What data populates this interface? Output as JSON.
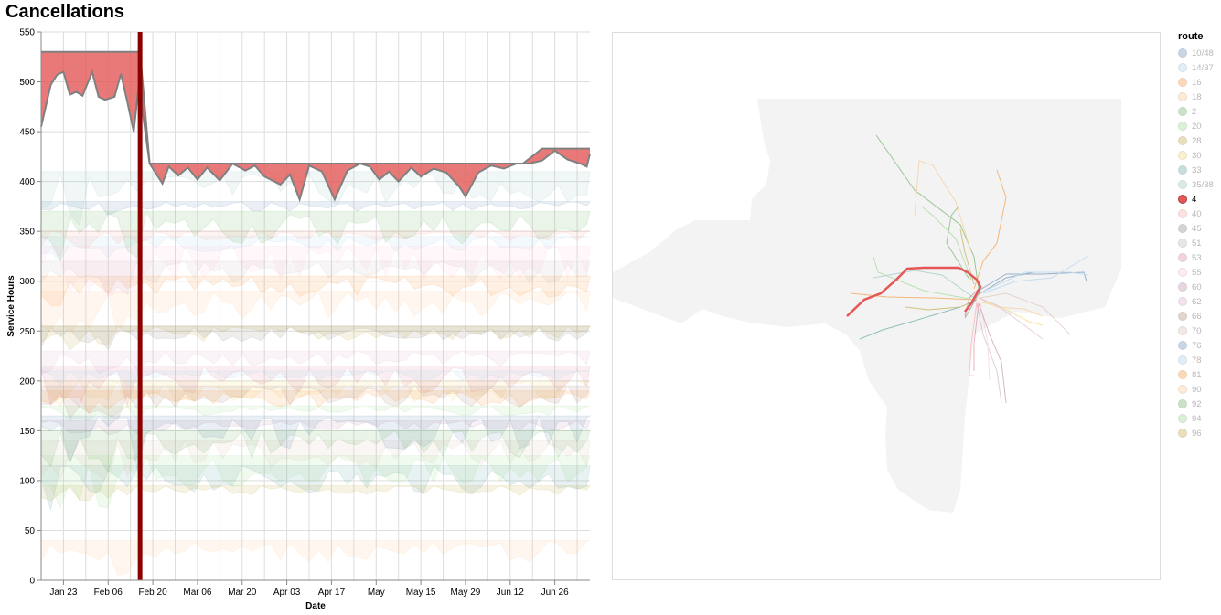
{
  "title": "Cancellations",
  "chart_data": {
    "type": "area",
    "xlabel": "Date",
    "ylabel": "Service Hours",
    "xlim": [
      "2023-01-16",
      "2023-07-07"
    ],
    "ylim": [
      0,
      550
    ],
    "y_ticks": [
      0,
      50,
      100,
      150,
      200,
      250,
      300,
      350,
      400,
      450,
      500,
      550
    ],
    "x_ticks": [
      {
        "date": "2023-01-23",
        "label": "Jan 23"
      },
      {
        "date": "2023-02-06",
        "label": "Feb 06"
      },
      {
        "date": "2023-02-20",
        "label": "Feb 20"
      },
      {
        "date": "2023-03-06",
        "label": "Mar 06"
      },
      {
        "date": "2023-03-20",
        "label": "Mar 20"
      },
      {
        "date": "2023-04-03",
        "label": "Apr 03"
      },
      {
        "date": "2023-04-17",
        "label": "Apr 17"
      },
      {
        "date": "2023-05-01",
        "label": "May"
      },
      {
        "date": "2023-05-15",
        "label": "May 15"
      },
      {
        "date": "2023-05-29",
        "label": "May 29"
      },
      {
        "date": "2023-06-12",
        "label": "Jun 12"
      },
      {
        "date": "2023-06-26",
        "label": "Jun 26"
      }
    ],
    "grid": true,
    "selected_date": "2023-02-16",
    "highlighted_series": {
      "name": "4",
      "color": "#e45756",
      "baseline": [
        {
          "x": "2023-01-16",
          "y": 530
        },
        {
          "x": "2023-02-16",
          "y": 530
        },
        {
          "x": "2023-02-19",
          "y": 418
        },
        {
          "x": "2023-06-16",
          "y": 418
        },
        {
          "x": "2023-06-22",
          "y": 433
        },
        {
          "x": "2023-07-07",
          "y": 433
        }
      ],
      "values": [
        {
          "x": "2023-01-16",
          "y": 455
        },
        {
          "x": "2023-01-19",
          "y": 497
        },
        {
          "x": "2023-01-21",
          "y": 507
        },
        {
          "x": "2023-01-23",
          "y": 510
        },
        {
          "x": "2023-01-25",
          "y": 487
        },
        {
          "x": "2023-01-27",
          "y": 490
        },
        {
          "x": "2023-01-29",
          "y": 486
        },
        {
          "x": "2023-02-01",
          "y": 510
        },
        {
          "x": "2023-02-03",
          "y": 485
        },
        {
          "x": "2023-02-05",
          "y": 482
        },
        {
          "x": "2023-02-08",
          "y": 485
        },
        {
          "x": "2023-02-10",
          "y": 508
        },
        {
          "x": "2023-02-12",
          "y": 480
        },
        {
          "x": "2023-02-14",
          "y": 450
        },
        {
          "x": "2023-02-16",
          "y": 508
        },
        {
          "x": "2023-02-17",
          "y": 465
        },
        {
          "x": "2023-02-19",
          "y": 418
        },
        {
          "x": "2023-02-23",
          "y": 398
        },
        {
          "x": "2023-02-25",
          "y": 415
        },
        {
          "x": "2023-02-28",
          "y": 406
        },
        {
          "x": "2023-03-03",
          "y": 414
        },
        {
          "x": "2023-03-06",
          "y": 402
        },
        {
          "x": "2023-03-09",
          "y": 414
        },
        {
          "x": "2023-03-13",
          "y": 401
        },
        {
          "x": "2023-03-17",
          "y": 418
        },
        {
          "x": "2023-03-21",
          "y": 411
        },
        {
          "x": "2023-03-24",
          "y": 416
        },
        {
          "x": "2023-03-27",
          "y": 405
        },
        {
          "x": "2023-04-01",
          "y": 397
        },
        {
          "x": "2023-04-04",
          "y": 407
        },
        {
          "x": "2023-04-07",
          "y": 382
        },
        {
          "x": "2023-04-10",
          "y": 416
        },
        {
          "x": "2023-04-14",
          "y": 410
        },
        {
          "x": "2023-04-18",
          "y": 382
        },
        {
          "x": "2023-04-22",
          "y": 411
        },
        {
          "x": "2023-04-26",
          "y": 418
        },
        {
          "x": "2023-04-29",
          "y": 415
        },
        {
          "x": "2023-05-02",
          "y": 402
        },
        {
          "x": "2023-05-05",
          "y": 410
        },
        {
          "x": "2023-05-08",
          "y": 400
        },
        {
          "x": "2023-05-12",
          "y": 414
        },
        {
          "x": "2023-05-15",
          "y": 405
        },
        {
          "x": "2023-05-19",
          "y": 413
        },
        {
          "x": "2023-05-23",
          "y": 409
        },
        {
          "x": "2023-05-27",
          "y": 395
        },
        {
          "x": "2023-05-29",
          "y": 385
        },
        {
          "x": "2023-06-02",
          "y": 409
        },
        {
          "x": "2023-06-06",
          "y": 416
        },
        {
          "x": "2023-06-10",
          "y": 413
        },
        {
          "x": "2023-06-14",
          "y": 418
        },
        {
          "x": "2023-06-18",
          "y": 418
        },
        {
          "x": "2023-06-22",
          "y": 421
        },
        {
          "x": "2023-06-26",
          "y": 431
        },
        {
          "x": "2023-06-30",
          "y": 422
        },
        {
          "x": "2023-07-04",
          "y": 418
        },
        {
          "x": "2023-07-06",
          "y": 415
        },
        {
          "x": "2023-07-07",
          "y": 428
        }
      ]
    },
    "background_series": [
      {
        "name": "10/48",
        "color": "#4c78a8",
        "base": 380
      },
      {
        "name": "14/37",
        "color": "#9ecae9",
        "base": 345
      },
      {
        "name": "16",
        "color": "#f58518",
        "base": 305
      },
      {
        "name": "18",
        "color": "#ffbf79",
        "base": 290
      },
      {
        "name": "2",
        "color": "#54a24b",
        "base": 370
      },
      {
        "name": "20",
        "color": "#88d27a",
        "base": 175
      },
      {
        "name": "28",
        "color": "#b79a20",
        "base": 255
      },
      {
        "name": "30",
        "color": "#f2cf5b",
        "base": 200
      },
      {
        "name": "33",
        "color": "#439894",
        "base": 115
      },
      {
        "name": "35/38",
        "color": "#83bcb6",
        "base": 410
      },
      {
        "name": "40",
        "color": "#ff9d98",
        "base": 350
      },
      {
        "name": "45",
        "color": "#79706e",
        "base": 255
      },
      {
        "name": "51",
        "color": "#bab0ac",
        "base": 320
      },
      {
        "name": "53",
        "color": "#d67195",
        "base": 215
      },
      {
        "name": "55",
        "color": "#fcbfd2",
        "base": 335
      },
      {
        "name": "60",
        "color": "#b279a2",
        "base": 160
      },
      {
        "name": "62",
        "color": "#d6a5c9",
        "base": 230
      },
      {
        "name": "66",
        "color": "#9e765f",
        "base": 195
      },
      {
        "name": "70",
        "color": "#d8b5a5",
        "base": 140
      },
      {
        "name": "76",
        "color": "#4c78a8",
        "base": 165
      },
      {
        "name": "78",
        "color": "#9ecae9",
        "base": 210
      },
      {
        "name": "81",
        "color": "#f58518",
        "base": 190
      },
      {
        "name": "90",
        "color": "#ffbf79",
        "base": 40
      },
      {
        "name": "92",
        "color": "#54a24b",
        "base": 150
      },
      {
        "name": "94",
        "color": "#88d27a",
        "base": 125
      },
      {
        "name": "96",
        "color": "#b79a20",
        "base": 95
      }
    ]
  },
  "legend": {
    "title": "route",
    "selected": "4",
    "items": [
      {
        "label": "10/48",
        "color": "#4c78a8"
      },
      {
        "label": "14/37",
        "color": "#9ecae9"
      },
      {
        "label": "16",
        "color": "#f58518"
      },
      {
        "label": "18",
        "color": "#ffbf79"
      },
      {
        "label": "2",
        "color": "#54a24b"
      },
      {
        "label": "20",
        "color": "#88d27a"
      },
      {
        "label": "28",
        "color": "#b79a20"
      },
      {
        "label": "30",
        "color": "#f2cf5b"
      },
      {
        "label": "33",
        "color": "#439894"
      },
      {
        "label": "35/38",
        "color": "#83bcb6"
      },
      {
        "label": "4",
        "color": "#e45756"
      },
      {
        "label": "40",
        "color": "#ff9d98"
      },
      {
        "label": "45",
        "color": "#79706e"
      },
      {
        "label": "51",
        "color": "#bab0ac"
      },
      {
        "label": "53",
        "color": "#d67195"
      },
      {
        "label": "55",
        "color": "#fcbfd2"
      },
      {
        "label": "60",
        "color": "#b279a2"
      },
      {
        "label": "62",
        "color": "#d6a5c9"
      },
      {
        "label": "66",
        "color": "#9e765f"
      },
      {
        "label": "70",
        "color": "#d8b5a5"
      },
      {
        "label": "76",
        "color": "#4c78a8"
      },
      {
        "label": "78",
        "color": "#9ecae9"
      },
      {
        "label": "81",
        "color": "#f58518"
      },
      {
        "label": "90",
        "color": "#ffbf79"
      },
      {
        "label": "92",
        "color": "#54a24b"
      },
      {
        "label": "94",
        "color": "#88d27a"
      },
      {
        "label": "96",
        "color": "#b79a20"
      }
    ]
  },
  "colors": {
    "selector_rule": "#8b0000",
    "outline": "#808080",
    "map_land": "#f3f3f3"
  }
}
